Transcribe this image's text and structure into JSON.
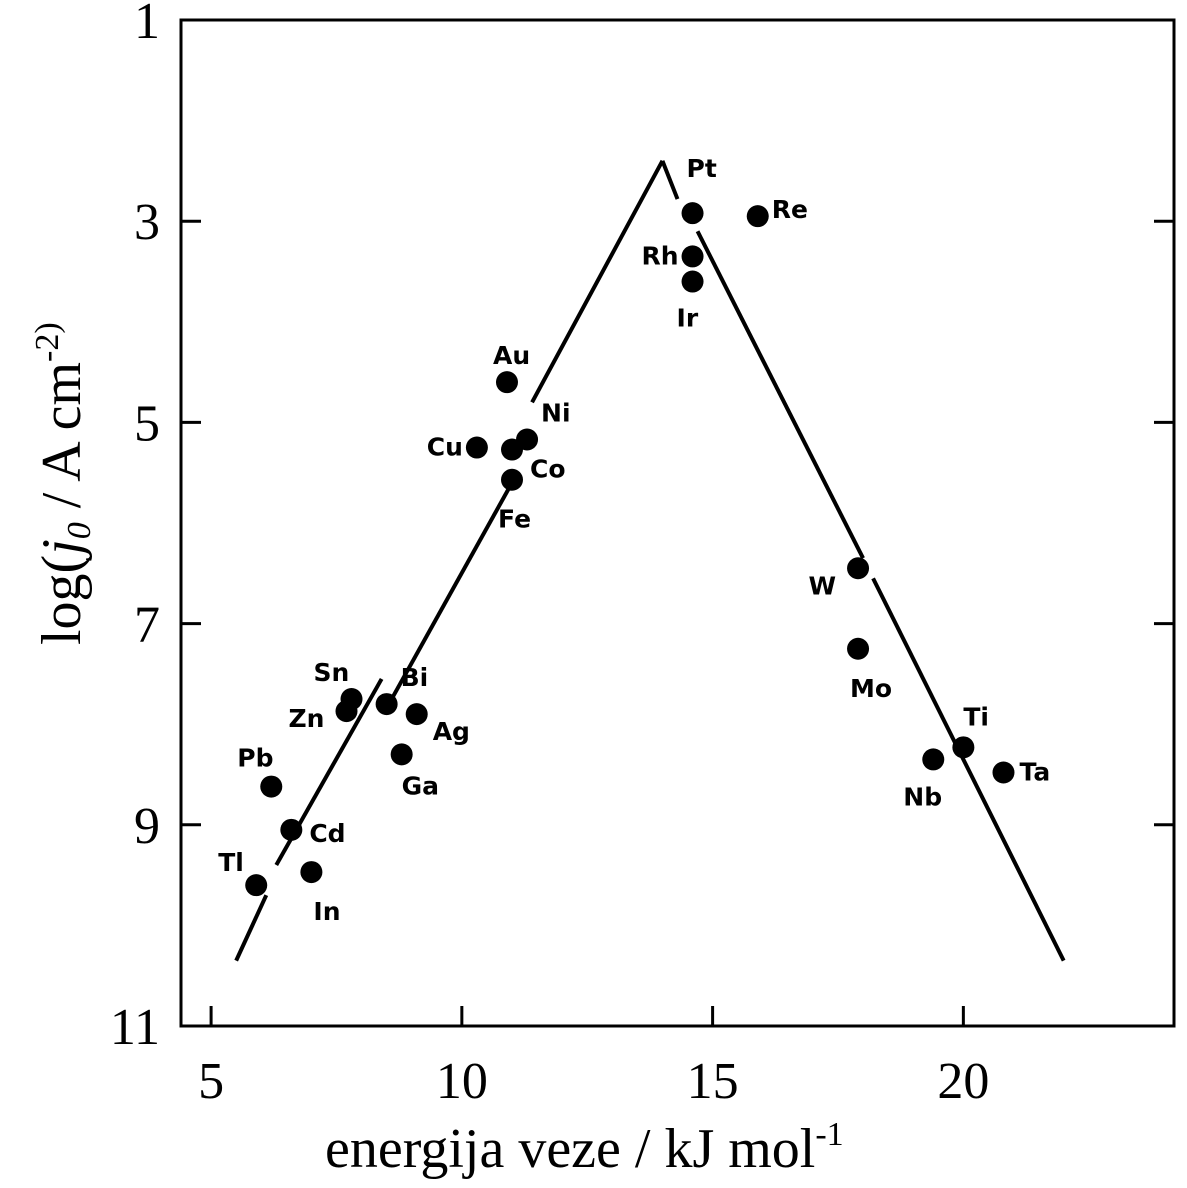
{
  "chart_data": {
    "type": "scatter",
    "xlabel": "energija veze / kJ mol",
    "xlabel_sup": "-1",
    "ylabel_prefix": "log(",
    "ylabel_j": "j",
    "ylabel_sub": "0",
    "ylabel_suffix": " / A cm",
    "ylabel_sup": "-2)",
    "xlim": [
      4.4,
      24.2
    ],
    "ylim": [
      1,
      11
    ],
    "y_inverted": true,
    "x_ticks": [
      "5",
      "10",
      "15",
      "20"
    ],
    "y_ticks": [
      "1",
      "3",
      "5",
      "7",
      "9",
      "11"
    ],
    "points": [
      {
        "label": "Pt",
        "x": 14.6,
        "y": 2.92
      },
      {
        "label": "Re",
        "x": 15.9,
        "y": 2.95
      },
      {
        "label": "Rh",
        "x": 14.6,
        "y": 3.35
      },
      {
        "label": "Ir",
        "x": 14.6,
        "y": 3.6
      },
      {
        "label": "Au",
        "x": 10.9,
        "y": 4.6
      },
      {
        "label": "Ni",
        "x": 11.3,
        "y": 5.17
      },
      {
        "label": "Cu",
        "x": 10.3,
        "y": 5.25
      },
      {
        "label": "Co",
        "x": 11.0,
        "y": 5.27
      },
      {
        "label": "Fe",
        "x": 11.0,
        "y": 5.57
      },
      {
        "label": "W",
        "x": 17.9,
        "y": 6.45
      },
      {
        "label": "Mo",
        "x": 17.9,
        "y": 7.25
      },
      {
        "label": "Sn",
        "x": 7.8,
        "y": 7.75
      },
      {
        "label": "Bi",
        "x": 8.5,
        "y": 7.8
      },
      {
        "label": "Zn",
        "x": 7.7,
        "y": 7.87
      },
      {
        "label": "Ag",
        "x": 9.1,
        "y": 7.9
      },
      {
        "label": "Ga",
        "x": 8.8,
        "y": 8.3
      },
      {
        "label": "Ti",
        "x": 20.0,
        "y": 8.23
      },
      {
        "label": "Nb",
        "x": 19.4,
        "y": 8.35
      },
      {
        "label": "Ta",
        "x": 20.8,
        "y": 8.48
      },
      {
        "label": "Pb",
        "x": 6.2,
        "y": 8.62
      },
      {
        "label": "Cd",
        "x": 6.6,
        "y": 9.05
      },
      {
        "label": "In",
        "x": 7.0,
        "y": 9.47
      },
      {
        "label": "Tl",
        "x": 5.9,
        "y": 9.6
      }
    ],
    "trend_lines": [
      {
        "name": "left-lower",
        "x": [
          5.5,
          6.1
        ],
        "y": [
          10.35,
          9.7
        ]
      },
      {
        "name": "left-upper",
        "x": [
          6.3,
          8.4
        ],
        "y": [
          9.4,
          7.55
        ]
      },
      {
        "name": "left-middle",
        "x": [
          8.6,
          11.0
        ],
        "y": [
          7.75,
          5.6
        ]
      },
      {
        "name": "left-top",
        "x": [
          11.4,
          14.0
        ],
        "y": [
          4.8,
          2.4
        ]
      },
      {
        "name": "right-top",
        "x": [
          14.0,
          14.3
        ],
        "y": [
          2.4,
          2.78
        ]
      },
      {
        "name": "right-upper",
        "x": [
          14.7,
          18.0
        ],
        "y": [
          3.1,
          6.35
        ]
      },
      {
        "name": "right-lower",
        "x": [
          18.2,
          22.0
        ],
        "y": [
          6.55,
          10.35
        ]
      }
    ]
  }
}
